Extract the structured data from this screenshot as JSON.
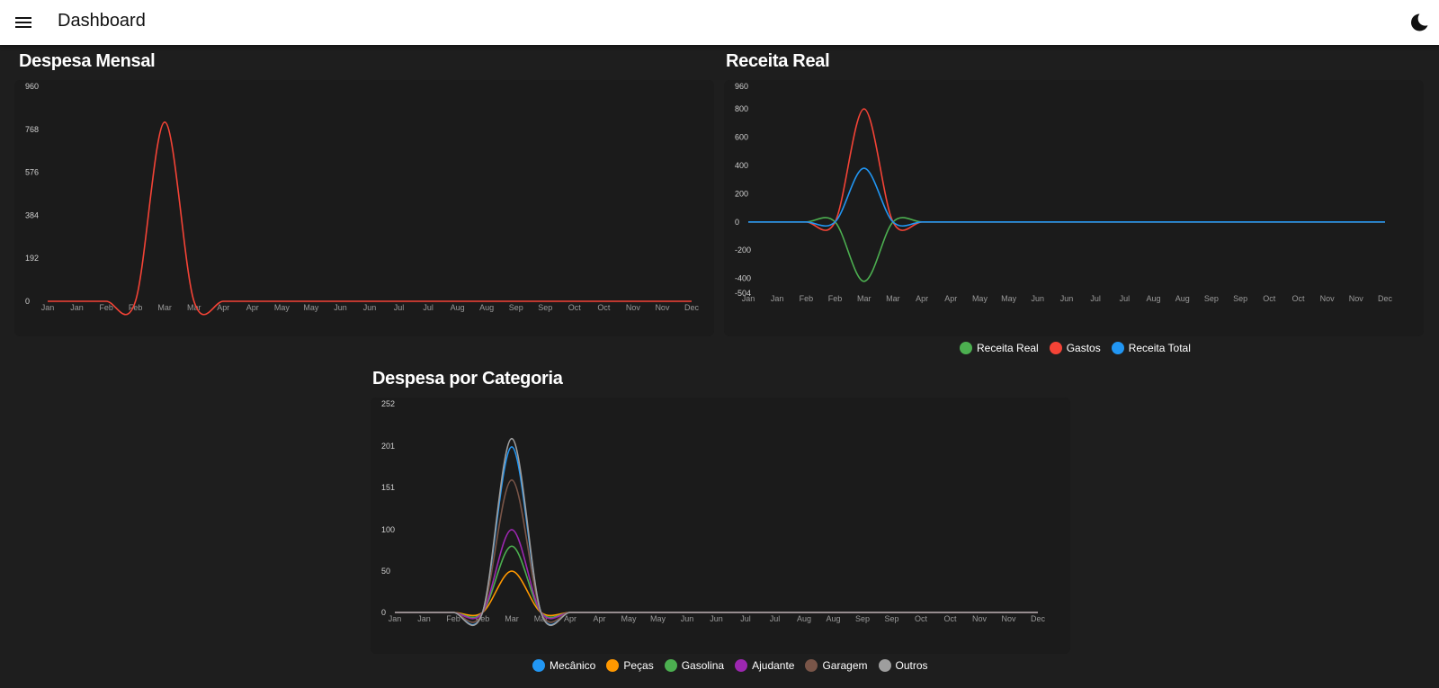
{
  "appbar": {
    "title": "Dashboard",
    "menu_icon": "menu-icon",
    "theme_icon": "moon-icon"
  },
  "chart_data": [
    {
      "id": "despesa_mensal",
      "type": "line",
      "title": "Despesa Mensal",
      "categories": [
        "Jan",
        "Jan",
        "Feb",
        "Feb",
        "Mar",
        "Mar",
        "Apr",
        "Apr",
        "May",
        "May",
        "Jun",
        "Jun",
        "Jul",
        "Jul",
        "Aug",
        "Aug",
        "Sep",
        "Sep",
        "Oct",
        "Oct",
        "Nov",
        "Nov",
        "Dec"
      ],
      "yticks": [
        0,
        192,
        384,
        576,
        768,
        960
      ],
      "ylim": [
        0,
        960
      ],
      "grid": false,
      "series": [
        {
          "color": "#f44336",
          "values": [
            0,
            0,
            0,
            0,
            800,
            0,
            0,
            0,
            0,
            0,
            0,
            0,
            0,
            0,
            0,
            0,
            0,
            0,
            0,
            0,
            0,
            0,
            0
          ]
        }
      ]
    },
    {
      "id": "receita_real",
      "type": "line",
      "title": "Receita Real",
      "categories": [
        "Jan",
        "Jan",
        "Feb",
        "Feb",
        "Mar",
        "Mar",
        "Apr",
        "Apr",
        "May",
        "May",
        "Jun",
        "Jun",
        "Jul",
        "Jul",
        "Aug",
        "Aug",
        "Sep",
        "Sep",
        "Oct",
        "Oct",
        "Nov",
        "Nov",
        "Dec"
      ],
      "yticks": [
        -504,
        -400,
        -200,
        0,
        200,
        400,
        600,
        800,
        960
      ],
      "ylim": [
        -504,
        960
      ],
      "grid": false,
      "legend_position": "bottom",
      "series": [
        {
          "name": "Receita Real",
          "color": "#4caf50",
          "values": [
            0,
            0,
            0,
            0,
            -420,
            0,
            0,
            0,
            0,
            0,
            0,
            0,
            0,
            0,
            0,
            0,
            0,
            0,
            0,
            0,
            0,
            0,
            0
          ]
        },
        {
          "name": "Gastos",
          "color": "#f44336",
          "values": [
            0,
            0,
            0,
            0,
            800,
            0,
            0,
            0,
            0,
            0,
            0,
            0,
            0,
            0,
            0,
            0,
            0,
            0,
            0,
            0,
            0,
            0,
            0
          ]
        },
        {
          "name": "Receita Total",
          "color": "#2196f3",
          "values": [
            0,
            0,
            0,
            0,
            380,
            0,
            0,
            0,
            0,
            0,
            0,
            0,
            0,
            0,
            0,
            0,
            0,
            0,
            0,
            0,
            0,
            0,
            0
          ]
        }
      ]
    },
    {
      "id": "despesa_categoria",
      "type": "line",
      "title": "Despesa por Categoria",
      "categories": [
        "Jan",
        "Jan",
        "Feb",
        "Feb",
        "Mar",
        "Mar",
        "Apr",
        "Apr",
        "May",
        "May",
        "Jun",
        "Jun",
        "Jul",
        "Jul",
        "Aug",
        "Aug",
        "Sep",
        "Sep",
        "Oct",
        "Oct",
        "Nov",
        "Nov",
        "Dec"
      ],
      "yticks": [
        0,
        50,
        100,
        151,
        201,
        252
      ],
      "ylim": [
        0,
        252
      ],
      "grid": false,
      "legend_position": "bottom",
      "series": [
        {
          "name": "Mecânico",
          "color": "#2196f3",
          "values": [
            0,
            0,
            0,
            0,
            200,
            0,
            0,
            0,
            0,
            0,
            0,
            0,
            0,
            0,
            0,
            0,
            0,
            0,
            0,
            0,
            0,
            0,
            0
          ]
        },
        {
          "name": "Peças",
          "color": "#ff9800",
          "values": [
            0,
            0,
            0,
            0,
            50,
            0,
            0,
            0,
            0,
            0,
            0,
            0,
            0,
            0,
            0,
            0,
            0,
            0,
            0,
            0,
            0,
            0,
            0
          ]
        },
        {
          "name": "Gasolina",
          "color": "#4caf50",
          "values": [
            0,
            0,
            0,
            0,
            80,
            0,
            0,
            0,
            0,
            0,
            0,
            0,
            0,
            0,
            0,
            0,
            0,
            0,
            0,
            0,
            0,
            0,
            0
          ]
        },
        {
          "name": "Ajudante",
          "color": "#9c27b0",
          "values": [
            0,
            0,
            0,
            0,
            100,
            0,
            0,
            0,
            0,
            0,
            0,
            0,
            0,
            0,
            0,
            0,
            0,
            0,
            0,
            0,
            0,
            0,
            0
          ]
        },
        {
          "name": "Garagem",
          "color": "#795548",
          "values": [
            0,
            0,
            0,
            0,
            160,
            0,
            0,
            0,
            0,
            0,
            0,
            0,
            0,
            0,
            0,
            0,
            0,
            0,
            0,
            0,
            0,
            0,
            0
          ]
        },
        {
          "name": "Outros",
          "color": "#9e9e9e",
          "values": [
            0,
            0,
            0,
            0,
            210,
            0,
            0,
            0,
            0,
            0,
            0,
            0,
            0,
            0,
            0,
            0,
            0,
            0,
            0,
            0,
            0,
            0,
            0
          ]
        }
      ]
    }
  ]
}
